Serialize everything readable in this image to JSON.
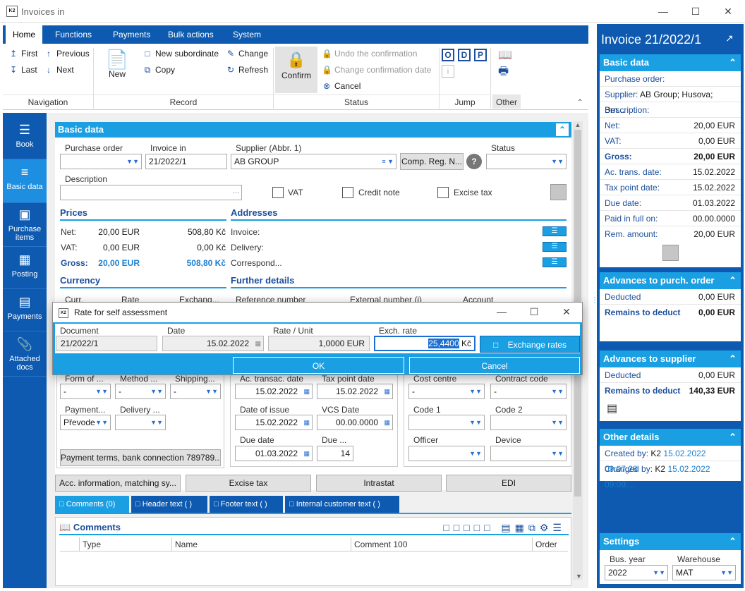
{
  "window": {
    "title": "Invoices in",
    "logo": "K2"
  },
  "menu": {
    "tabs": [
      "Home",
      "Functions",
      "Payments",
      "Bulk actions",
      "System"
    ]
  },
  "ribbon": {
    "navigation": {
      "first": "First",
      "previous": "Previous",
      "last": "Last",
      "next": "Next",
      "group": "Navigation"
    },
    "record": {
      "new": "New",
      "new_subordinate": "New subordinate",
      "change": "Change",
      "copy": "Copy",
      "refresh": "Refresh",
      "group": "Record"
    },
    "status": {
      "confirm": "Confirm",
      "undo_confirmation": "Undo the confirmation",
      "change_confirmation_date": "Change confirmation date",
      "cancel": "Cancel",
      "group": "Status"
    },
    "jump": {
      "o": "O",
      "d": "D",
      "p": "P",
      "group": "Jump"
    },
    "other": {
      "group": "Other"
    }
  },
  "leftnav": [
    {
      "label": "Book",
      "icon": "menu-icon"
    },
    {
      "label": "Basic data",
      "icon": "list-icon"
    },
    {
      "label": "Purchase items",
      "icon": "box-icon"
    },
    {
      "label": "Posting",
      "icon": "calculator-icon"
    },
    {
      "label": "Payments",
      "icon": "inbox-icon"
    },
    {
      "label": "Attached docs",
      "icon": "paperclip-icon"
    }
  ],
  "basic": {
    "title": "Basic data",
    "purchase_order_label": "Purchase order",
    "purchase_order": "",
    "invoice_in_label": "Invoice in",
    "invoice_in": "21/2022/1",
    "supplier_label": "Supplier (Abbr. 1)",
    "supplier": "AB GROUP",
    "comp_reg_btn": "Comp. Reg. N...",
    "status_label": "Status",
    "status": "",
    "description_label": "Description",
    "description": "",
    "vat_label": "VAT",
    "credit_note_label": "Credit note",
    "excise_tax_label": "Excise tax"
  },
  "prices": {
    "title": "Prices",
    "rows": [
      {
        "label": "Net:",
        "eur": "20,00 EUR",
        "czk": "508,80 Kč"
      },
      {
        "label": "VAT:",
        "eur": "0,00 EUR",
        "czk": "0,00 Kč"
      },
      {
        "label": "Gross:",
        "eur": "20,00 EUR",
        "czk": "508,80 Kč"
      }
    ]
  },
  "addresses": {
    "title": "Addresses",
    "rows": [
      "Invoice:",
      "Delivery:",
      "Correspond..."
    ]
  },
  "currency": {
    "title": "Currency",
    "cols": [
      "Curr.",
      "Rate",
      "Exchang..."
    ]
  },
  "further": {
    "title": "Further details",
    "cols": [
      "Reference number",
      "External number (i)",
      "Account"
    ]
  },
  "lower": {
    "form_of": "Form of ...",
    "method": "Method ...",
    "shipping": "Shipping...",
    "form_val": "-",
    "method_val": "-",
    "shipping_val": "-",
    "payment_label": "Payment...",
    "payment_val": "Převode",
    "delivery_label": "Delivery ...",
    "payment_terms_btn": "Payment terms, bank connection 789789...",
    "ac_trans_date_label": "Ac. transac. date",
    "ac_trans_date": "15.02.2022",
    "tax_point_label": "Tax point date",
    "tax_point": "15.02.2022",
    "issue_label": "Date of issue",
    "issue": "15.02.2022",
    "vcs_label": "VCS Date",
    "vcs": "00.00.0000",
    "due_label": "Due date",
    "due": "01.03.2022",
    "due_days_label": "Due ...",
    "due_days": "14",
    "cost_centre_label": "Cost centre",
    "cost_centre": "-",
    "contract_code_label": "Contract code",
    "contract_code": "-",
    "code1_label": "Code 1",
    "code2_label": "Code 2",
    "officer_label": "Officer",
    "device_label": "Device"
  },
  "bottom_buttons": [
    "Acc. information, matching sy...",
    "Excise tax",
    "Intrastat",
    "EDI"
  ],
  "tabs": [
    "Comments (0)",
    "Header text ( )",
    "Footer text ( )",
    "Internal customer text ( )"
  ],
  "comments": {
    "title": "Comments",
    "columns": [
      "Type",
      "Name",
      "Comment 100",
      "Order"
    ]
  },
  "dialog": {
    "title": "Rate for self assessment",
    "document_label": "Document",
    "document": "21/2022/1",
    "date_label": "Date",
    "date": "15.02.2022",
    "rate_label": "Rate / Unit",
    "rate": "1,0000 EUR",
    "exch_label": "Exch. rate",
    "exch": "25,4400",
    "exch_curr": "Kč",
    "exchange_rates_btn": "Exchange rates",
    "ok": "OK",
    "cancel": "Cancel"
  },
  "right": {
    "title": "Invoice 21/2022/1",
    "basic_title": "Basic data",
    "basic_rows": [
      {
        "k": "Purchase order:",
        "v": ""
      },
      {
        "k": "Supplier:",
        "v": "AB Group; Husova; Brn..."
      },
      {
        "k": "Description:",
        "v": ""
      },
      {
        "k": "Net:",
        "v": "20,00 EUR"
      },
      {
        "k": "VAT:",
        "v": "0,00 EUR"
      },
      {
        "k": "Gross:",
        "v": "20,00 EUR"
      },
      {
        "k": "Ac. trans. date:",
        "v": "15.02.2022"
      },
      {
        "k": "Tax point date:",
        "v": "15.02.2022"
      },
      {
        "k": "Due date:",
        "v": "01.03.2022"
      },
      {
        "k": "Paid in full on:",
        "v": "00.00.0000"
      },
      {
        "k": "Rem. amount:",
        "v": "20,00 EUR"
      }
    ],
    "adv_order_title": "Advances to purch. order",
    "adv_order_rows": [
      {
        "k": "Deducted",
        "v": "0,00 EUR"
      },
      {
        "k": "Remains to deduct",
        "v": "0,00 EUR"
      }
    ],
    "adv_supplier_title": "Advances to supplier",
    "adv_supplier_rows": [
      {
        "k": "Deducted",
        "v": "0,00 EUR"
      },
      {
        "k": "Remains to deduct",
        "v": "140,33 EUR"
      }
    ],
    "other_title": "Other details",
    "other_rows": [
      {
        "k": "Created by:",
        "u": "K2",
        "v": "15.02.2022 09:07:28"
      },
      {
        "k": "Changed by:",
        "u": "K2",
        "v": "15.02.2022 09:09:..."
      }
    ],
    "settings_title": "Settings",
    "bus_year_label": "Bus. year",
    "bus_year": "2022",
    "warehouse_label": "Warehouse",
    "warehouse": "MAT"
  }
}
